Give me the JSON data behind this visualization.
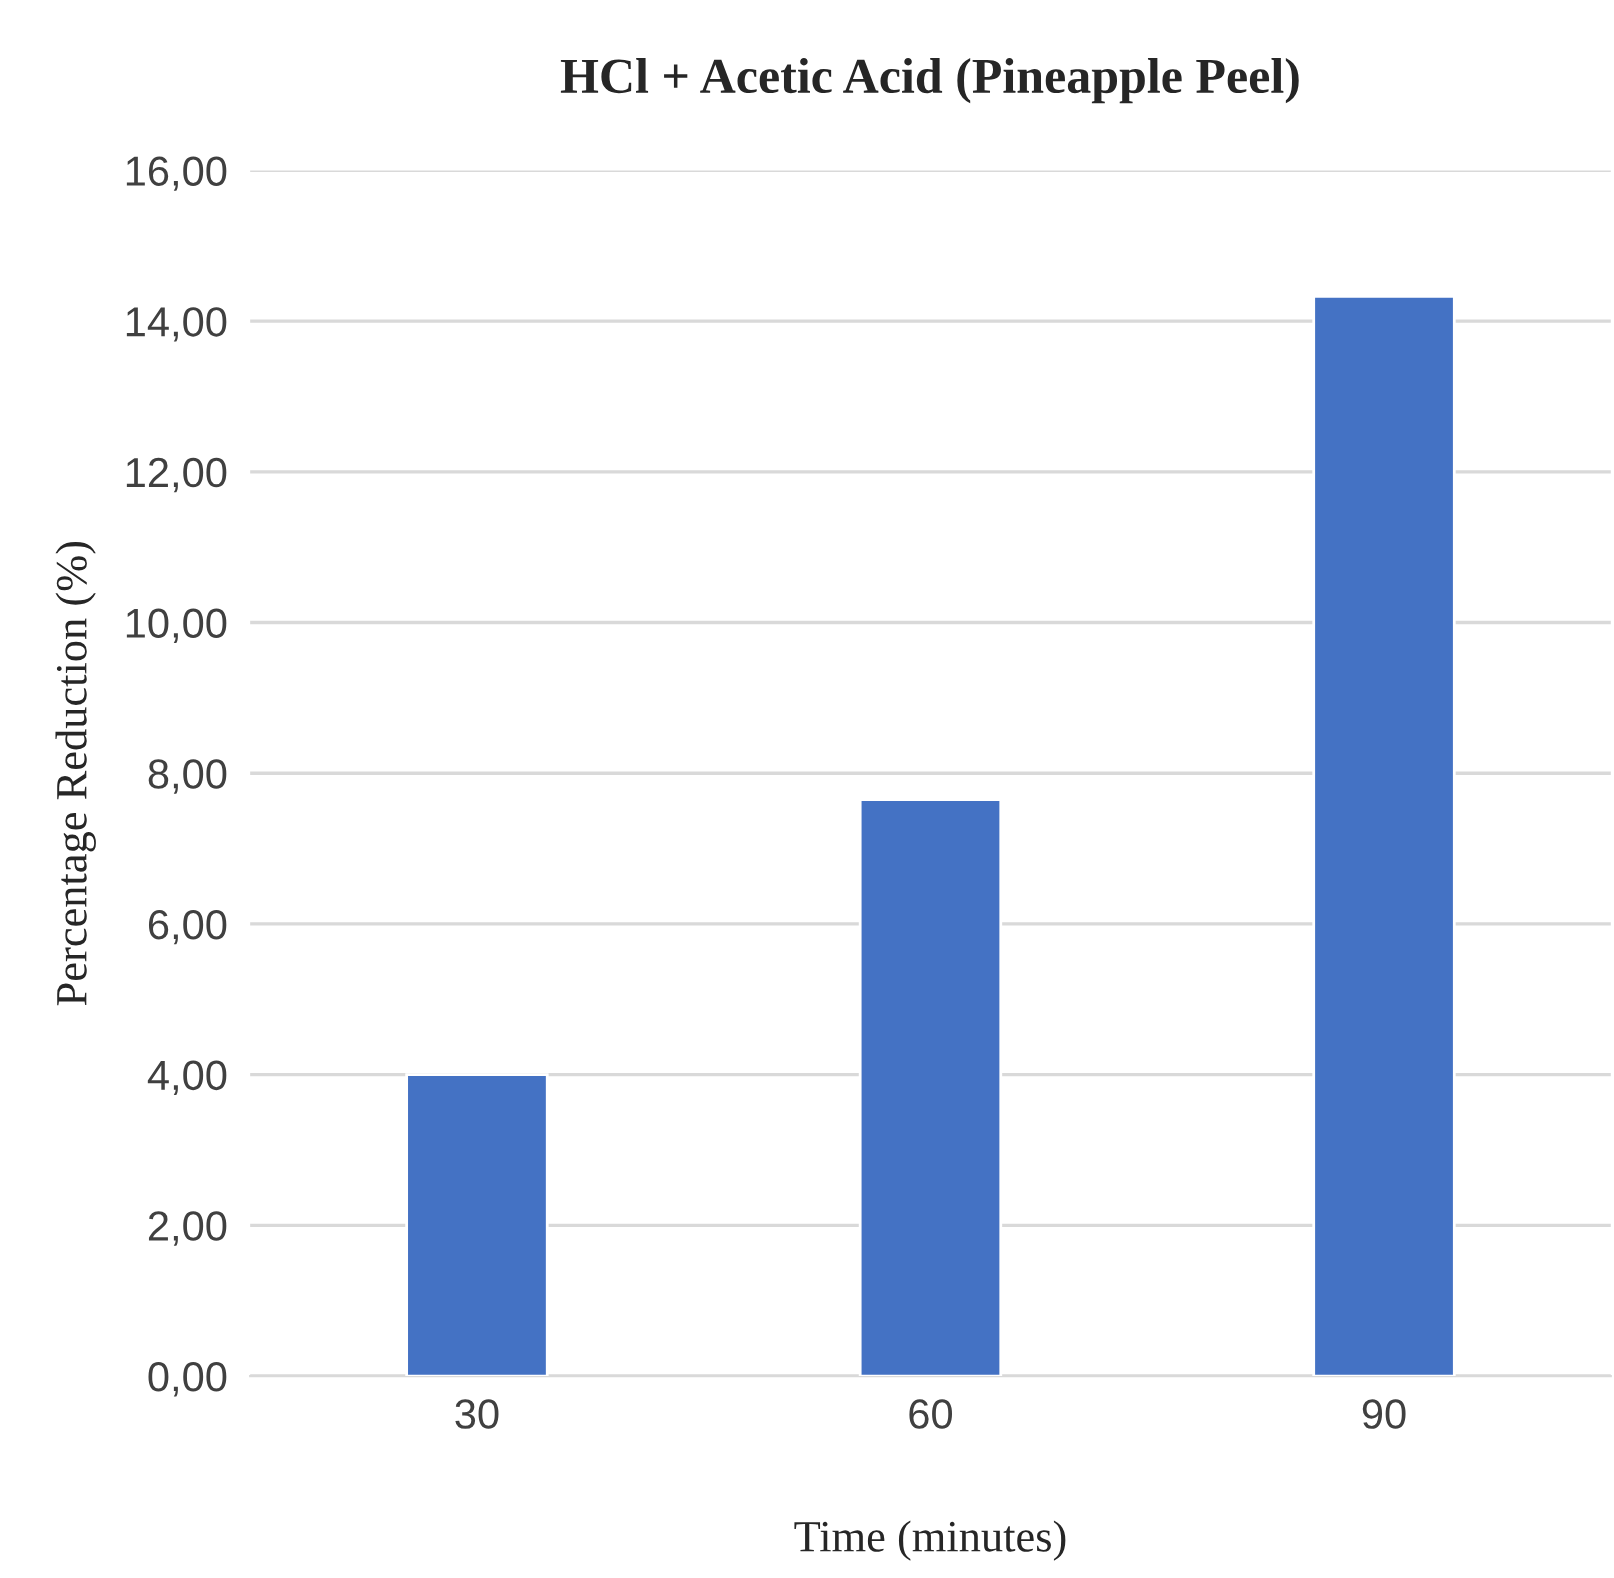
{
  "chart_data": {
    "type": "bar",
    "title": "HCl + Acetic Acid (Pineapple Peel)",
    "xlabel": "Time (minutes)",
    "ylabel": "Percentage Reduction (%)",
    "categories": [
      "30",
      "60",
      "90"
    ],
    "values": [
      4.0,
      7.65,
      14.33
    ],
    "color": "#4472c4",
    "ylim": [
      0,
      16
    ],
    "yticks": [
      {
        "value": 0,
        "label": "0,00"
      },
      {
        "value": 2,
        "label": "2,00"
      },
      {
        "value": 4,
        "label": "4,00"
      },
      {
        "value": 6,
        "label": "6,00"
      },
      {
        "value": 8,
        "label": "8,00"
      },
      {
        "value": 10,
        "label": "10,00"
      },
      {
        "value": 12,
        "label": "12,00"
      },
      {
        "value": 14,
        "label": "14,00"
      },
      {
        "value": 16,
        "label": "16,00"
      }
    ],
    "grid": "y"
  }
}
